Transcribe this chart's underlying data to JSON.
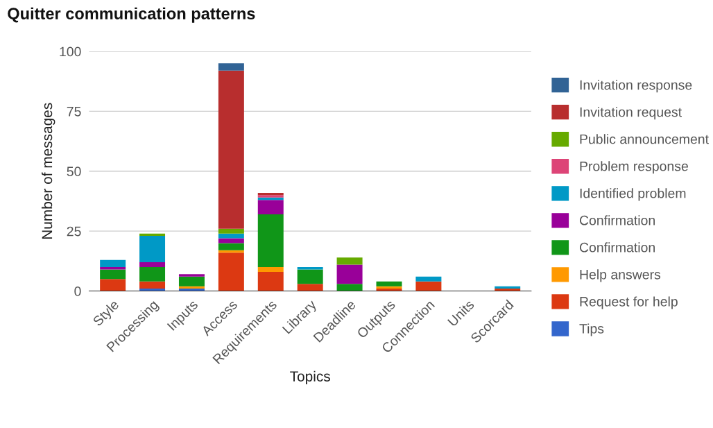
{
  "chart_data": {
    "type": "bar",
    "title": "Quitter communication patterns",
    "xlabel": "Topics",
    "ylabel": "Number of messages",
    "categories": [
      "Style",
      "Processing",
      "Inputs",
      "Access",
      "Requirements",
      "Library",
      "Deadline",
      "Outputs",
      "Connection",
      "Units",
      "Scorcard"
    ],
    "stacked": true,
    "ylim": [
      0,
      100
    ],
    "yticks": [
      0,
      25,
      50,
      75,
      100
    ],
    "grid": "y",
    "legend": "right",
    "series": [
      {
        "name": "Tips",
        "color": "#3366cc",
        "values": [
          0,
          1,
          1,
          0,
          0,
          0,
          0,
          0,
          0,
          0,
          0
        ]
      },
      {
        "name": "Request for help",
        "color": "#dc3912",
        "values": [
          5,
          3,
          0,
          16,
          8,
          3,
          0,
          1,
          4,
          0,
          1
        ]
      },
      {
        "name": "Help answers",
        "color": "#ff9900",
        "values": [
          0,
          0,
          1,
          1,
          2,
          0,
          0,
          1,
          0,
          0,
          0
        ]
      },
      {
        "name": "Confirmation",
        "color": "#109618",
        "values": [
          4,
          6,
          4,
          3,
          22,
          6,
          3,
          2,
          0,
          0,
          0
        ]
      },
      {
        "name": "Confirmation",
        "color": "#990099",
        "values": [
          1,
          2,
          1,
          2,
          6,
          0,
          8,
          0,
          0,
          0,
          0
        ]
      },
      {
        "name": "Identified problem",
        "color": "#0099c6",
        "values": [
          3,
          11,
          0,
          2,
          1,
          1,
          0,
          0,
          2,
          0,
          1
        ]
      },
      {
        "name": "Problem response",
        "color": "#dd4477",
        "values": [
          0,
          0,
          0,
          0,
          1,
          0,
          0,
          0,
          0,
          0,
          0
        ]
      },
      {
        "name": "Public announcement",
        "color": "#66aa00",
        "values": [
          0,
          1,
          0,
          2,
          0,
          0,
          3,
          0,
          0,
          0,
          0
        ]
      },
      {
        "name": "Invitation request",
        "color": "#b82e2e",
        "values": [
          0,
          0,
          0,
          66,
          1,
          0,
          0,
          0,
          0,
          0,
          0
        ]
      },
      {
        "name": "Invitation response",
        "color": "#316395",
        "values": [
          0,
          0,
          0,
          3,
          0,
          0,
          0,
          0,
          0,
          0,
          0
        ]
      }
    ]
  }
}
